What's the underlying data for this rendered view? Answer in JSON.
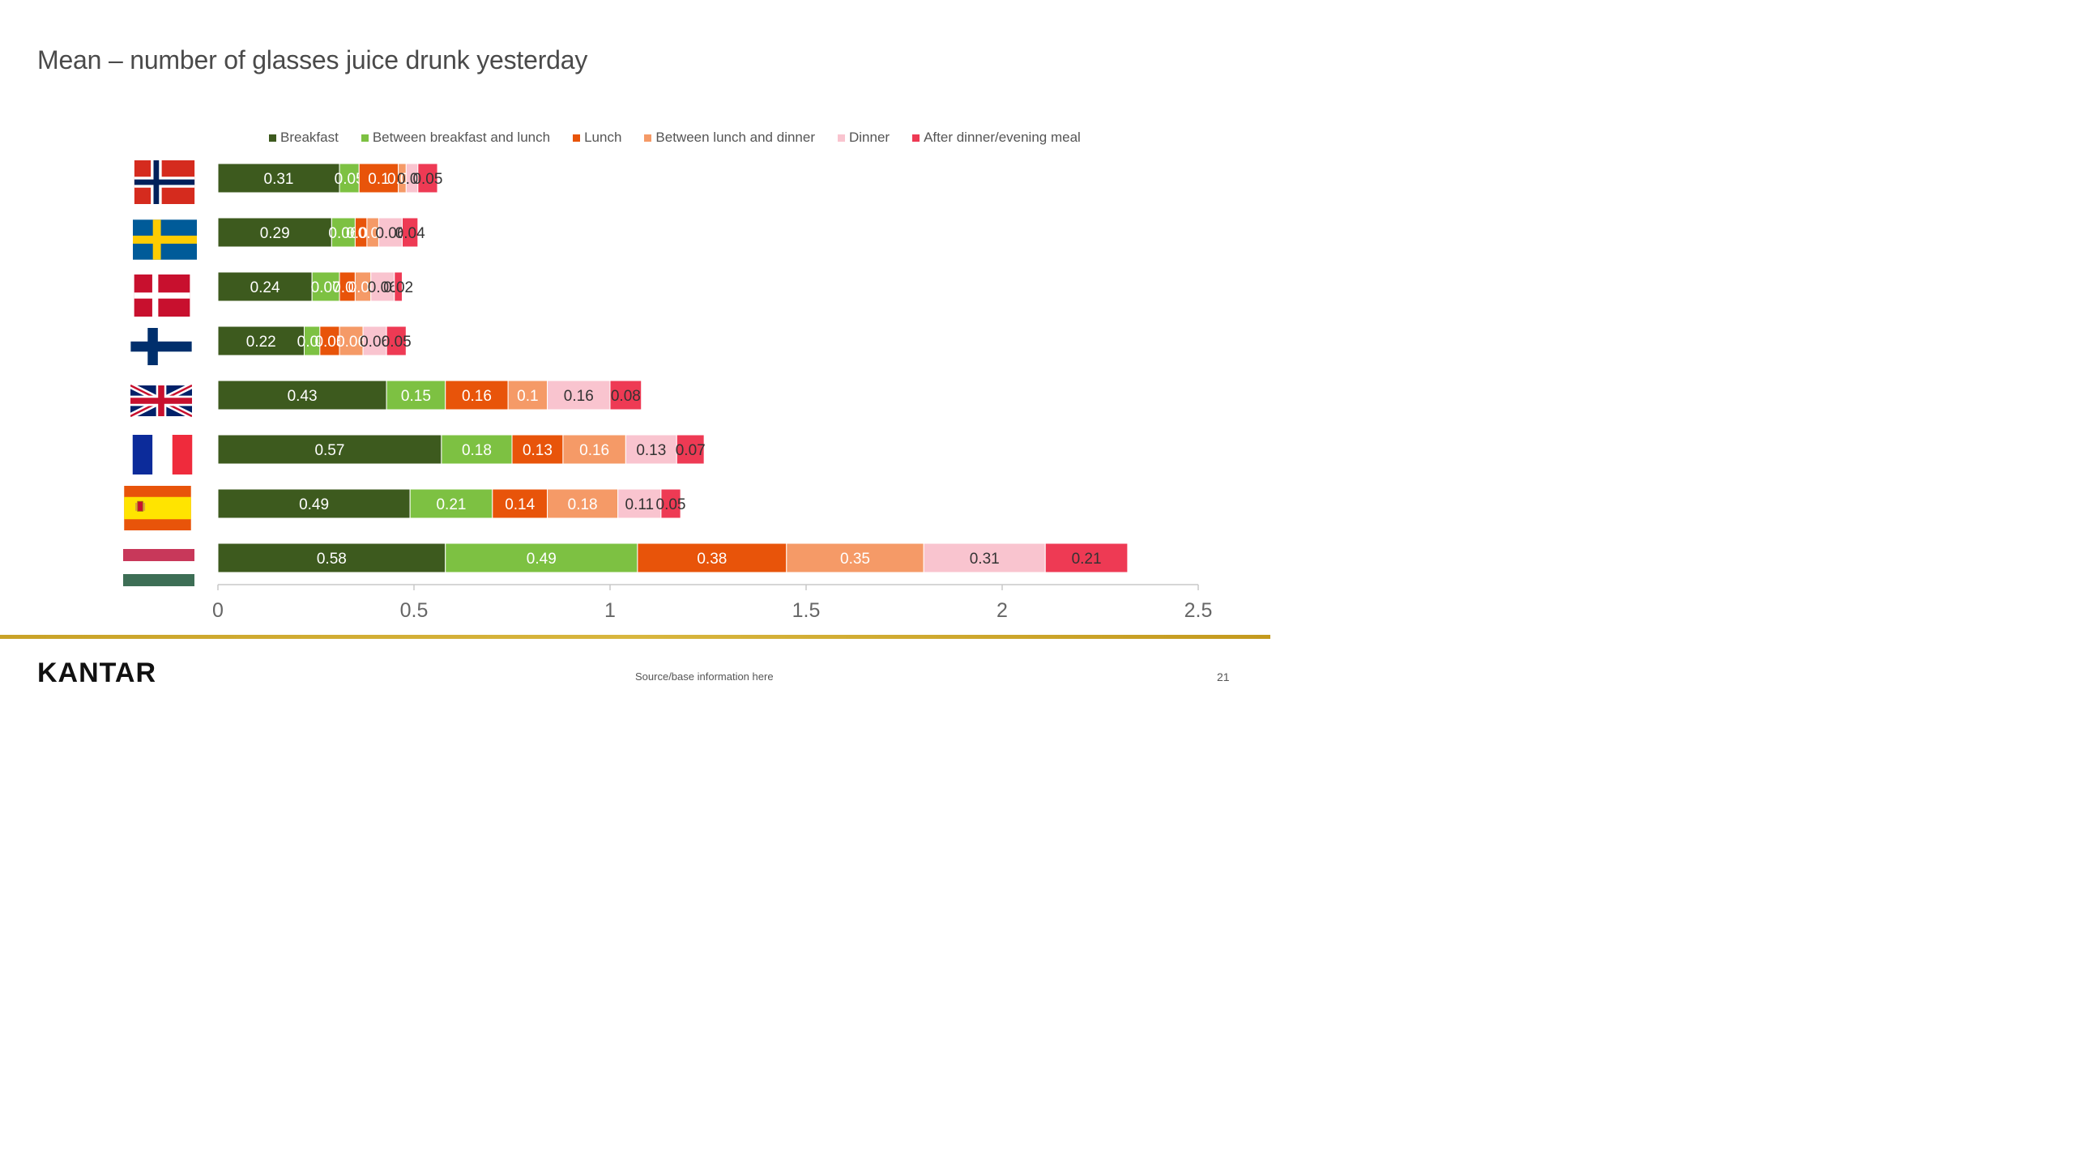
{
  "slide": {
    "title": "Mean – number of glasses juice drunk yesterday",
    "logo": "KANTAR",
    "source": "Source/base information here",
    "page_number": "21"
  },
  "legend": [
    {
      "label": "Breakfast",
      "color": "#3d5a1e"
    },
    {
      "label": "Between breakfast and lunch",
      "color": "#7dc142"
    },
    {
      "label": "Lunch",
      "color": "#e8540a"
    },
    {
      "label": "Between lunch and dinner",
      "color": "#f59a67"
    },
    {
      "label": "Dinner",
      "color": "#f9c4cf"
    },
    {
      "label": "After dinner/evening meal",
      "color": "#ee3a54"
    }
  ],
  "chart_data": {
    "type": "bar",
    "orientation": "horizontal",
    "stacked": true,
    "title": "Mean – number of glasses juice drunk yesterday",
    "categories": [
      "Norway",
      "Sweden",
      "Denmark",
      "Finland",
      "UK",
      "France",
      "Spain",
      "Hungary"
    ],
    "series": [
      {
        "name": "Breakfast",
        "color": "#3d5a1e",
        "label_color": "#ffffff",
        "values": [
          0.31,
          0.29,
          0.24,
          0.22,
          0.43,
          0.57,
          0.49,
          0.58
        ]
      },
      {
        "name": "Between breakfast and lunch",
        "color": "#7dc142",
        "label_color": "#ffffff",
        "values": [
          0.05,
          0.06,
          0.07,
          0.04,
          0.15,
          0.18,
          0.21,
          0.49
        ]
      },
      {
        "name": "Lunch",
        "color": "#e8540a",
        "label_color": "#ffffff",
        "values": [
          0.1,
          0.03,
          0.04,
          0.05,
          0.16,
          0.13,
          0.14,
          0.38
        ]
      },
      {
        "name": "Between lunch and dinner",
        "color": "#f59a67",
        "label_color": "#ffffff",
        "values": [
          0.02,
          0.03,
          0.04,
          0.06,
          0.1,
          0.16,
          0.18,
          0.35
        ]
      },
      {
        "name": "Dinner",
        "color": "#f9c4cf",
        "label_color": "#333333",
        "values": [
          0.03,
          0.06,
          0.06,
          0.06,
          0.16,
          0.13,
          0.11,
          0.31
        ]
      },
      {
        "name": "After dinner/evening meal",
        "color": "#ee3a54",
        "label_color": "#333333",
        "values": [
          0.05,
          0.04,
          0.02,
          0.05,
          0.08,
          0.07,
          0.05,
          0.21
        ]
      }
    ],
    "xlim": [
      0,
      2.5
    ],
    "xticks": [
      0,
      0.5,
      1,
      1.5,
      2,
      2.5
    ],
    "xtick_labels": [
      "0",
      "0.5",
      "1",
      "1.5",
      "2",
      "2.5"
    ],
    "grid": false,
    "legend_position": "top"
  }
}
